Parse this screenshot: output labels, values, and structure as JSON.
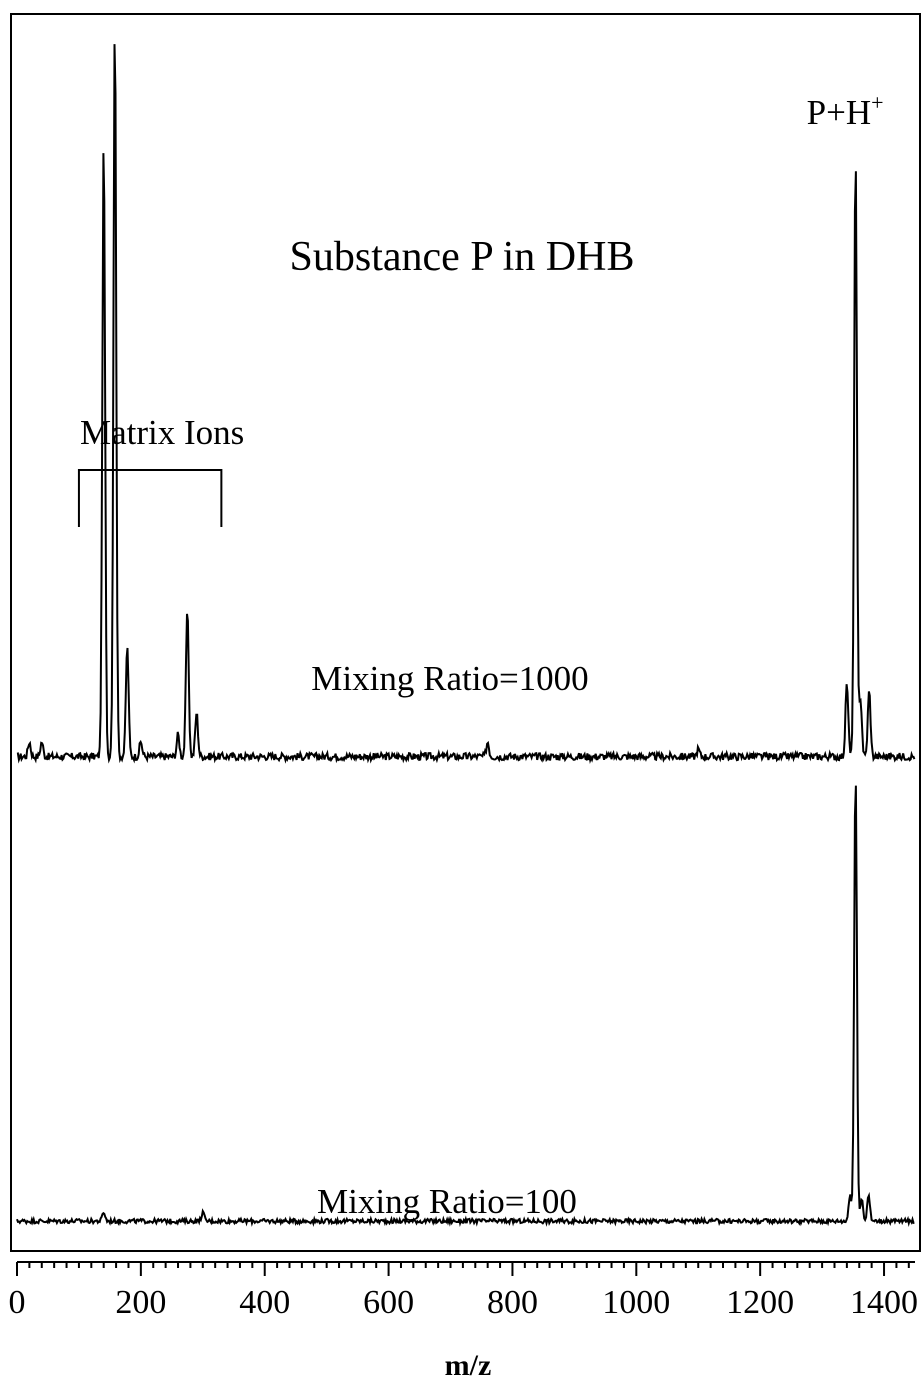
{
  "chart_data": {
    "type": "line",
    "title": "Substance P in DHB",
    "xlabel": "m/z",
    "ylabel": "",
    "xlim": [
      0,
      1450
    ],
    "xticks": [
      "0",
      "200",
      "400",
      "600",
      "800",
      "1000",
      "1200",
      "1400"
    ],
    "grid": false,
    "annotations": {
      "matrix_ions": {
        "text": "Matrix Ions",
        "x_range": [
          100,
          330
        ]
      },
      "peak_label": {
        "text": "P+H",
        "superscript": "+",
        "x": 1350
      }
    },
    "series": [
      {
        "name": "Mixing Ratio=1000",
        "baseline_noise": 0.01,
        "peaks": [
          {
            "x": 20,
            "y": 0.02
          },
          {
            "x": 40,
            "y": 0.02
          },
          {
            "x": 140,
            "y": 0.84
          },
          {
            "x": 158,
            "y": 1.0
          },
          {
            "x": 178,
            "y": 0.15
          },
          {
            "x": 200,
            "y": 0.02
          },
          {
            "x": 260,
            "y": 0.03
          },
          {
            "x": 275,
            "y": 0.2
          },
          {
            "x": 290,
            "y": 0.06
          },
          {
            "x": 760,
            "y": 0.02
          },
          {
            "x": 1100,
            "y": 0.01
          },
          {
            "x": 1340,
            "y": 0.1
          },
          {
            "x": 1354,
            "y": 0.82
          },
          {
            "x": 1362,
            "y": 0.08
          },
          {
            "x": 1376,
            "y": 0.09
          }
        ]
      },
      {
        "name": "Mixing Ratio=100",
        "baseline_noise": 0.01,
        "peaks": [
          {
            "x": 140,
            "y": 0.02
          },
          {
            "x": 300,
            "y": 0.02
          },
          {
            "x": 1345,
            "y": 0.06
          },
          {
            "x": 1354,
            "y": 1.0
          },
          {
            "x": 1364,
            "y": 0.05
          },
          {
            "x": 1375,
            "y": 0.06
          }
        ]
      }
    ]
  }
}
